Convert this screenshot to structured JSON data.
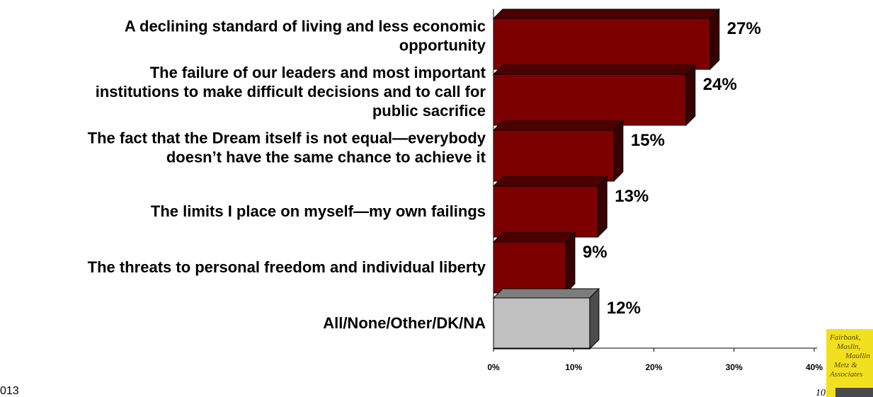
{
  "chart_data": {
    "type": "bar",
    "orientation": "horizontal",
    "three_d": true,
    "categories": [
      [
        "A declining standard of living and less economic",
        "opportunity"
      ],
      [
        "The failure of our leaders and most important",
        "institutions to make difficult decisions and to call for",
        "public sacrifice"
      ],
      [
        "The fact that the Dream itself is not equal—everybody",
        "doesn’t have the same chance to achieve it"
      ],
      [
        "The limits I place on myself—my own failings"
      ],
      [
        "The threats to personal freedom and individual liberty"
      ],
      [
        "All/None/Other/DK/NA"
      ]
    ],
    "values": [
      27,
      24,
      15,
      13,
      9,
      12
    ],
    "value_labels": [
      "27%",
      "24%",
      "15%",
      "13%",
      "9%",
      "12%"
    ],
    "bar_colors": [
      "#7d0000",
      "#7d0000",
      "#7d0000",
      "#7d0000",
      "#7d0000",
      "#c0c0c0"
    ],
    "xlim": [
      0,
      40
    ],
    "xticks": [
      0,
      10,
      20,
      30,
      40
    ],
    "xtick_labels": [
      "0%",
      "10%",
      "20%",
      "30%",
      "40%"
    ],
    "grid": false,
    "legend": "none"
  },
  "footer": {
    "left_text": "013",
    "page_number": "10"
  },
  "logo": {
    "lines": [
      "Fairbank,",
      "Maslin,",
      "Maullin",
      "Metz &",
      "Associates"
    ],
    "bg_color": "#f0e020"
  }
}
